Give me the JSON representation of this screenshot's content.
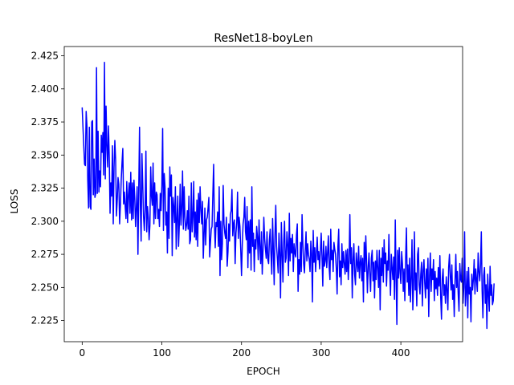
{
  "chart_data": {
    "type": "line",
    "title": "ResNet18-boyLen",
    "xlabel": "EPOCH",
    "ylabel": "LOSS",
    "xlim": [
      -22.5,
      477.5
    ],
    "ylim": [
      2.209,
      2.432
    ],
    "x_ticks": [
      0,
      100,
      200,
      300,
      400
    ],
    "x_tick_labels": [
      "0",
      "100",
      "200",
      "300",
      "400"
    ],
    "y_ticks": [
      2.225,
      2.25,
      2.275,
      2.3,
      2.325,
      2.35,
      2.375,
      2.4,
      2.425
    ],
    "y_tick_labels": [
      "2.225",
      "2.250",
      "2.275",
      "2.300",
      "2.325",
      "2.350",
      "2.375",
      "2.400",
      "2.425"
    ],
    "grid": false,
    "legend": "none",
    "series": [
      {
        "color": "#0000ff",
        "x_start": 0,
        "x_step": 1,
        "values": [
          2.386,
          2.371,
          2.357,
          2.343,
          2.342,
          2.383,
          2.372,
          2.331,
          2.31,
          2.371,
          2.311,
          2.309,
          2.375,
          2.376,
          2.32,
          2.347,
          2.318,
          2.321,
          2.416,
          2.321,
          2.368,
          2.322,
          2.338,
          2.326,
          2.365,
          2.352,
          2.367,
          2.335,
          2.42,
          2.332,
          2.387,
          2.357,
          2.341,
          2.372,
          2.348,
          2.306,
          2.329,
          2.319,
          2.357,
          2.298,
          2.341,
          2.361,
          2.346,
          2.304,
          2.316,
          2.333,
          2.328,
          2.298,
          2.312,
          2.331,
          2.344,
          2.355,
          2.313,
          2.322,
          2.311,
          2.302,
          2.33,
          2.299,
          2.32,
          2.329,
          2.306,
          2.337,
          2.301,
          2.329,
          2.302,
          2.331,
          2.317,
          2.296,
          2.311,
          2.326,
          2.275,
          2.324,
          2.371,
          2.312,
          2.285,
          2.351,
          2.328,
          2.304,
          2.293,
          2.309,
          2.353,
          2.292,
          2.311,
          2.303,
          2.286,
          2.297,
          2.341,
          2.319,
          2.312,
          2.344,
          2.298,
          2.329,
          2.302,
          2.322,
          2.32,
          2.302,
          2.309,
          2.296,
          2.321,
          2.308,
          2.327,
          2.37,
          2.293,
          2.336,
          2.326,
          2.297,
          2.307,
          2.276,
          2.325,
          2.287,
          2.341,
          2.319,
          2.335,
          2.274,
          2.318,
          2.311,
          2.299,
          2.326,
          2.279,
          2.302,
          2.319,
          2.281,
          2.299,
          2.328,
          2.297,
          2.31,
          2.338,
          2.294,
          2.326,
          2.303,
          2.293,
          2.297,
          2.308,
          2.294,
          2.319,
          2.283,
          2.286,
          2.329,
          2.292,
          2.303,
          2.33,
          2.288,
          2.307,
          2.286,
          2.316,
          2.281,
          2.321,
          2.299,
          2.326,
          2.309,
          2.298,
          2.315,
          2.272,
          2.29,
          2.31,
          2.282,
          2.301,
          2.303,
          2.31,
          2.318,
          2.273,
          2.284,
          2.294,
          2.296,
          2.32,
          2.343,
          2.298,
          2.28,
          2.299,
          2.296,
          2.307,
          2.281,
          2.326,
          2.259,
          2.3,
          2.271,
          2.283,
          2.327,
          2.298,
          2.291,
          2.287,
          2.303,
          2.266,
          2.277,
          2.298,
          2.285,
          2.305,
          2.308,
          2.324,
          2.289,
          2.298,
          2.301,
          2.268,
          2.291,
          2.299,
          2.322,
          2.287,
          2.303,
          2.296,
          2.279,
          2.259,
          2.283,
          2.298,
          2.303,
          2.318,
          2.292,
          2.286,
          2.311,
          2.265,
          2.3,
          2.276,
          2.301,
          2.263,
          2.326,
          2.281,
          2.291,
          2.262,
          2.286,
          2.279,
          2.296,
          2.288,
          2.271,
          2.301,
          2.281,
          2.268,
          2.292,
          2.26,
          2.278,
          2.303,
          2.287,
          2.279,
          2.272,
          2.292,
          2.271,
          2.268,
          2.286,
          2.294,
          2.275,
          2.26,
          2.302,
          2.278,
          2.252,
          2.29,
          2.312,
          2.281,
          2.272,
          2.261,
          2.291,
          2.276,
          2.242,
          2.299,
          2.276,
          2.254,
          2.285,
          2.3,
          2.269,
          2.272,
          2.292,
          2.282,
          2.259,
          2.306,
          2.27,
          2.287,
          2.276,
          2.29,
          2.262,
          2.283,
          2.276,
          2.273,
          2.29,
          2.298,
          2.247,
          2.271,
          2.26,
          2.284,
          2.262,
          2.305,
          2.283,
          2.268,
          2.261,
          2.278,
          2.292,
          2.27,
          2.283,
          2.275,
          2.271,
          2.262,
          2.285,
          2.276,
          2.239,
          2.293,
          2.269,
          2.28,
          2.262,
          2.276,
          2.288,
          2.271,
          2.277,
          2.264,
          2.277,
          2.291,
          2.274,
          2.251,
          2.285,
          2.266,
          2.27,
          2.281,
          2.265,
          2.276,
          2.289,
          2.265,
          2.256,
          2.294,
          2.271,
          2.278,
          2.262,
          2.284,
          2.279,
          2.275,
          2.264,
          2.245,
          2.281,
          2.294,
          2.258,
          2.27,
          2.252,
          2.283,
          2.265,
          2.277,
          2.268,
          2.26,
          2.278,
          2.262,
          2.279,
          2.256,
          2.27,
          2.305,
          2.268,
          2.28,
          2.242,
          2.271,
          2.283,
          2.26,
          2.252,
          2.276,
          2.268,
          2.262,
          2.281,
          2.257,
          2.269,
          2.274,
          2.255,
          2.272,
          2.239,
          2.284,
          2.262,
          2.289,
          2.269,
          2.246,
          2.265,
          2.276,
          2.26,
          2.247,
          2.272,
          2.278,
          2.255,
          2.269,
          2.242,
          2.27,
          2.256,
          2.278,
          2.265,
          2.25,
          2.278,
          2.233,
          2.272,
          2.259,
          2.28,
          2.254,
          2.286,
          2.268,
          2.276,
          2.251,
          2.27,
          2.263,
          2.29,
          2.263,
          2.244,
          2.275,
          2.265,
          2.256,
          2.273,
          2.241,
          2.301,
          2.258,
          2.222,
          2.278,
          2.257,
          2.28,
          2.261,
          2.253,
          2.277,
          2.268,
          2.247,
          2.264,
          2.24,
          2.272,
          2.295,
          2.254,
          2.267,
          2.244,
          2.272,
          2.239,
          2.257,
          2.286,
          2.233,
          2.252,
          2.292,
          2.248,
          2.261,
          2.236,
          2.275,
          2.28,
          2.252,
          2.245,
          2.26,
          2.269,
          2.236,
          2.263,
          2.271,
          2.253,
          2.242,
          2.264,
          2.249,
          2.272,
          2.228,
          2.258,
          2.276,
          2.247,
          2.264,
          2.256,
          2.271,
          2.24,
          2.262,
          2.249,
          2.257,
          2.244,
          2.265,
          2.251,
          2.274,
          2.243,
          2.226,
          2.257,
          2.264,
          2.244,
          2.252,
          2.238,
          2.258,
          2.248,
          2.233,
          2.265,
          2.275,
          2.259,
          2.248,
          2.267,
          2.241,
          2.252,
          2.228,
          2.255,
          2.275,
          2.25,
          2.262,
          2.245,
          2.232,
          2.268,
          2.256,
          2.254,
          2.272,
          2.238,
          2.25,
          2.292,
          2.236,
          2.247,
          2.262,
          2.227,
          2.265,
          2.245,
          2.25,
          2.224,
          2.26,
          2.248,
          2.256,
          2.271,
          2.245,
          2.264,
          2.256,
          2.247,
          2.276,
          2.262,
          2.255,
          2.267,
          2.292,
          2.248,
          2.227,
          2.259,
          2.265,
          2.238,
          2.252,
          2.219,
          2.26,
          2.245,
          2.232,
          2.266,
          2.244,
          2.252,
          2.237,
          2.24,
          2.253
        ]
      }
    ]
  }
}
